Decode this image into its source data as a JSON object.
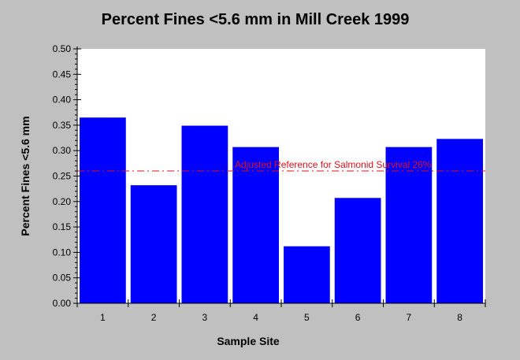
{
  "chart_data": {
    "type": "bar",
    "title": "Percent Fines <5.6 mm in Mill Creek 1999",
    "xlabel": "Sample Site",
    "ylabel": "Percent Fines <5.6 mm",
    "categories": [
      "1",
      "2",
      "3",
      "4",
      "5",
      "6",
      "7",
      "8"
    ],
    "values": [
      0.365,
      0.232,
      0.349,
      0.307,
      0.112,
      0.207,
      0.307,
      0.323
    ],
    "ylim": [
      0,
      0.5
    ],
    "yticks": [
      "0.00",
      "0.05",
      "0.10",
      "0.15",
      "0.20",
      "0.25",
      "0.30",
      "0.35",
      "0.40",
      "0.45",
      "0.50"
    ],
    "bar_color": "#0000ff",
    "grid": false,
    "reference_line": {
      "value": 0.26,
      "label": "Adjusted Reference for Salmonid Survival 26%",
      "color": "#e0101a",
      "style": "dash-dot"
    }
  }
}
